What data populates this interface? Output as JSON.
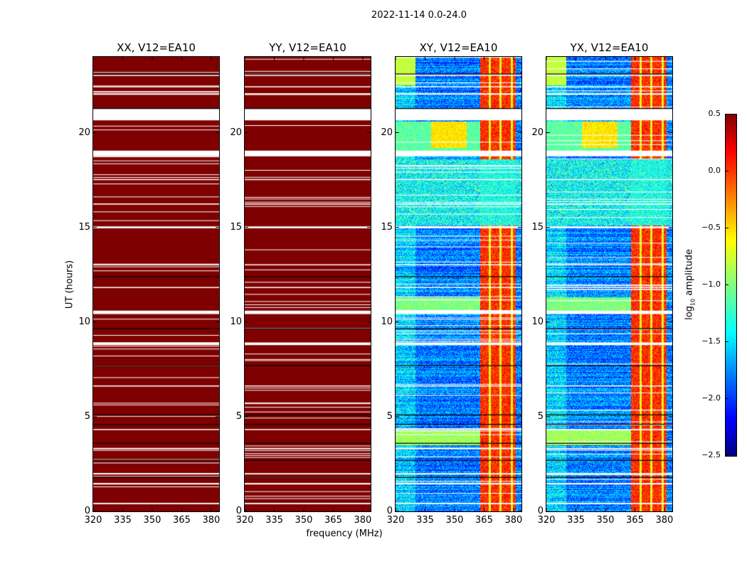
{
  "suptitle": "2022-11-14 0.0-24.0",
  "colors": {
    "flag": "#ffffff",
    "saturated": "#7f0000",
    "break_line": "#000000"
  },
  "colorbar": {
    "label_prefix": "log",
    "label_sub": "10",
    "label_suffix": " amplitude",
    "ticks": [
      "0.5",
      "0.0",
      "−0.5",
      "−1.0",
      "−1.5",
      "−2.0",
      "−2.5"
    ],
    "tick_values": [
      0.5,
      0.0,
      -0.5,
      -1.0,
      -1.5,
      -2.0,
      -2.5
    ],
    "range": [
      -2.5,
      0.5
    ],
    "colormap": "jet"
  },
  "chart_data": [
    {
      "type": "heatmap",
      "title": "XX, V12=EA10",
      "xlabel": "",
      "ylabel": "UT (hours)",
      "xlim": [
        320,
        384
      ],
      "ylim": [
        0,
        24
      ],
      "xticks": [
        "320",
        "335",
        "350",
        "365",
        "380"
      ],
      "xtick_values": [
        320,
        335,
        350,
        365,
        380
      ],
      "yticks": [
        "0",
        "5",
        "10",
        "15",
        "20"
      ],
      "ytick_values": [
        0,
        5,
        10,
        15,
        20
      ],
      "fill": "saturated",
      "clim": [
        -2.5,
        0.5
      ]
    },
    {
      "type": "heatmap",
      "title": "YY, V12=EA10",
      "xlabel": "frequency (MHz)",
      "ylabel": "",
      "xlim": [
        320,
        384
      ],
      "ylim": [
        0,
        24
      ],
      "xticks": [
        "320",
        "335",
        "350",
        "365",
        "380"
      ],
      "xtick_values": [
        320,
        335,
        350,
        365,
        380
      ],
      "yticks": [
        "0",
        "5",
        "10",
        "15",
        "20"
      ],
      "ytick_values": [
        0,
        5,
        10,
        15,
        20
      ],
      "fill": "saturated",
      "clim": [
        -2.5,
        0.5
      ]
    },
    {
      "type": "heatmap",
      "title": "XY, V12=EA10",
      "xlabel": "",
      "ylabel": "",
      "xlim": [
        320,
        384
      ],
      "ylim": [
        0,
        24
      ],
      "xticks": [
        "320",
        "335",
        "350",
        "365",
        "380"
      ],
      "xtick_values": [
        320,
        335,
        350,
        365,
        380
      ],
      "yticks": [
        "0",
        "5",
        "10",
        "15",
        "20"
      ],
      "ytick_values": [
        0,
        5,
        10,
        15,
        20
      ],
      "fill": "spectrum",
      "clim": [
        -2.5,
        0.5
      ]
    },
    {
      "type": "heatmap",
      "title": "YX, V12=EA10",
      "xlabel": "",
      "ylabel": "",
      "xlim": [
        320,
        384
      ],
      "ylim": [
        0,
        24
      ],
      "xticks": [
        "320",
        "335",
        "350",
        "365",
        "380"
      ],
      "xtick_values": [
        320,
        335,
        350,
        365,
        380
      ],
      "yticks": [
        "0",
        "5",
        "10",
        "15",
        "20"
      ],
      "ytick_values": [
        0,
        5,
        10,
        15,
        20
      ],
      "fill": "spectrum",
      "clim": [
        -2.5,
        0.5
      ]
    }
  ],
  "flagged_hours": [
    [
      20.65,
      21.25
    ],
    [
      18.75,
      19.05
    ],
    [
      10.42,
      10.6
    ],
    [
      8.78,
      8.92
    ],
    [
      14.95,
      15.05
    ],
    [
      1.42,
      1.5
    ],
    [
      0.38,
      0.45
    ],
    [
      3.28,
      3.35
    ],
    [
      1.95,
      2.02
    ],
    [
      22.0,
      22.08
    ],
    [
      22.4,
      22.45
    ],
    [
      23.0,
      23.05
    ],
    [
      16.2,
      16.26
    ],
    [
      17.5,
      17.55
    ],
    [
      13.0,
      13.05
    ],
    [
      11.8,
      11.85
    ],
    [
      6.6,
      6.65
    ],
    [
      4.3,
      4.35
    ]
  ],
  "break_hours": [
    23.1,
    21.28,
    12.4,
    9.65,
    7.7,
    5.1,
    4.6,
    3.6,
    2.7,
    1.8
  ],
  "hot_band_mhz": [
    363,
    381
  ]
}
